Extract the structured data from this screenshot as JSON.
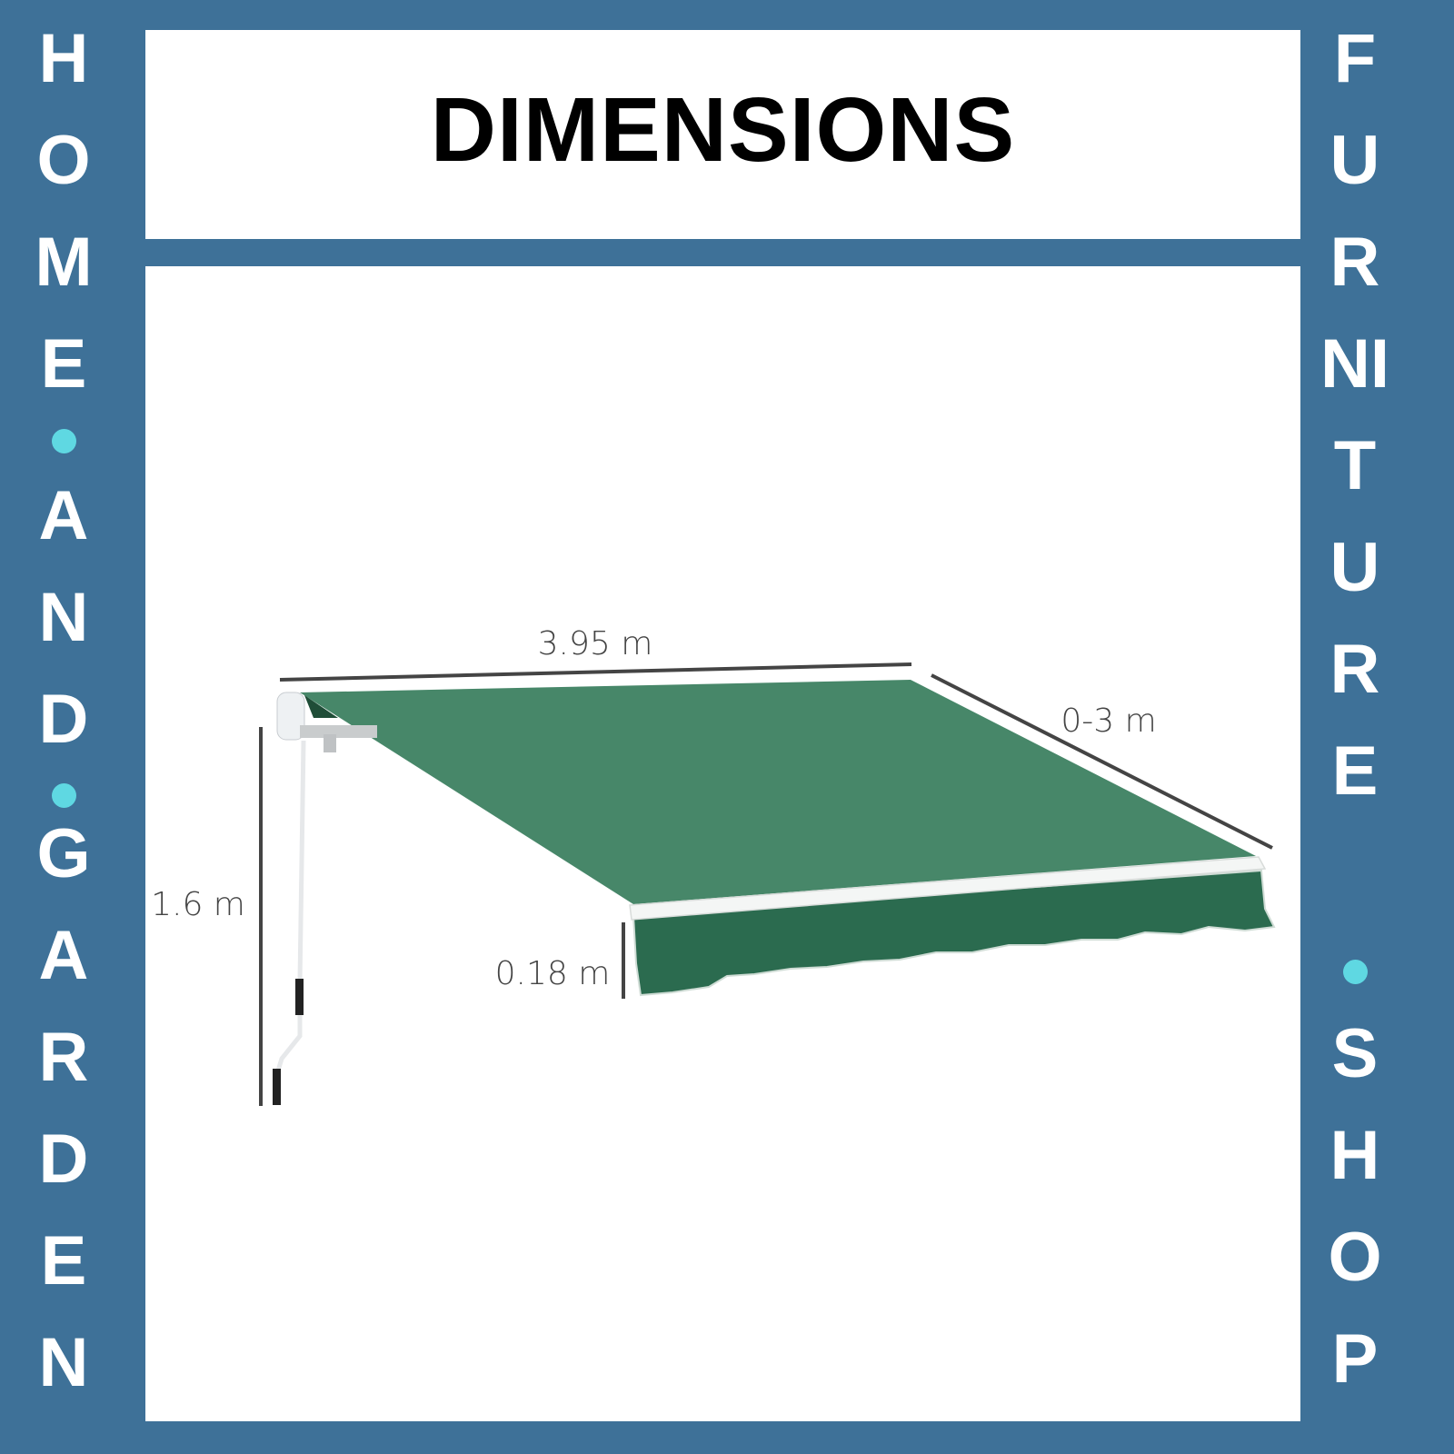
{
  "title": "DIMENSIONS",
  "left_banner": {
    "words": [
      "HOME",
      "AND",
      "GARDEN"
    ]
  },
  "right_banner": {
    "words": [
      "FURNITURE",
      "SHOP"
    ]
  },
  "colors": {
    "frame": "#3e7198",
    "dot": "#5fd8e2",
    "awning_top": "#478769",
    "awning_valance": "#2b6b4f"
  },
  "dimensions": {
    "width": "3.95 m",
    "projection": "0-3 m",
    "height": "1.6 m",
    "valance": "0.18 m"
  }
}
